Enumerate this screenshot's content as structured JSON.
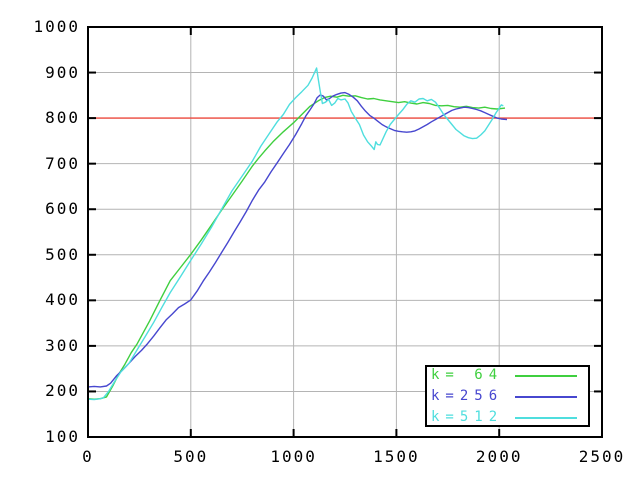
{
  "window": {
    "background": "#ffffff"
  },
  "chart_data": {
    "type": "line",
    "title": "",
    "xlabel": "",
    "ylabel": "",
    "xlim": [
      0,
      2500
    ],
    "ylim": [
      100,
      1000
    ],
    "grid": true,
    "grid_color": "#b4b4b4",
    "border_color": "#000000",
    "legend_position": "bottom-right",
    "xticks": [
      0,
      500,
      1000,
      1500,
      2000,
      2500
    ],
    "xtick_labels": [
      "0",
      "500",
      "1000",
      "1500",
      "2000",
      "2500"
    ],
    "yticks": [
      100,
      200,
      300,
      400,
      500,
      600,
      700,
      800,
      900,
      1000
    ],
    "ytick_labels": [
      "100",
      "200",
      "300",
      "400",
      "500",
      "600",
      "700",
      "800",
      "900",
      "1000"
    ],
    "reference_line": {
      "y": 800,
      "color": "#ef4a3f"
    },
    "series": [
      {
        "label": "k= 64",
        "color": "#3fcf3f",
        "points": [
          [
            0,
            184
          ],
          [
            30,
            183
          ],
          [
            60,
            184
          ],
          [
            90,
            188
          ],
          [
            120,
            212
          ],
          [
            150,
            238
          ],
          [
            180,
            260
          ],
          [
            210,
            285
          ],
          [
            240,
            305
          ],
          [
            270,
            330
          ],
          [
            300,
            355
          ],
          [
            350,
            400
          ],
          [
            400,
            443
          ],
          [
            450,
            472
          ],
          [
            500,
            501
          ],
          [
            550,
            532
          ],
          [
            600,
            565
          ],
          [
            650,
            598
          ],
          [
            700,
            630
          ],
          [
            750,
            662
          ],
          [
            800,
            695
          ],
          [
            830,
            712
          ],
          [
            860,
            728
          ],
          [
            900,
            748
          ],
          [
            950,
            770
          ],
          [
            1000,
            790
          ],
          [
            1040,
            808
          ],
          [
            1080,
            826
          ],
          [
            1120,
            838
          ],
          [
            1150,
            845
          ],
          [
            1180,
            848
          ],
          [
            1210,
            846
          ],
          [
            1240,
            850
          ],
          [
            1270,
            848
          ],
          [
            1300,
            849
          ],
          [
            1330,
            845
          ],
          [
            1360,
            842
          ],
          [
            1390,
            843
          ],
          [
            1420,
            840
          ],
          [
            1450,
            838
          ],
          [
            1480,
            836
          ],
          [
            1510,
            834
          ],
          [
            1540,
            836
          ],
          [
            1570,
            833
          ],
          [
            1600,
            831
          ],
          [
            1630,
            834
          ],
          [
            1660,
            832
          ],
          [
            1690,
            828
          ],
          [
            1720,
            827
          ],
          [
            1750,
            828
          ],
          [
            1780,
            825
          ],
          [
            1810,
            824
          ],
          [
            1840,
            826
          ],
          [
            1870,
            823
          ],
          [
            1900,
            822
          ],
          [
            1930,
            824
          ],
          [
            1960,
            821
          ],
          [
            1990,
            820
          ],
          [
            2028,
            822
          ]
        ]
      },
      {
        "label": "k=256",
        "color": "#4747cf",
        "points": [
          [
            0,
            210
          ],
          [
            30,
            211
          ],
          [
            60,
            210
          ],
          [
            90,
            212
          ],
          [
            110,
            218
          ],
          [
            140,
            235
          ],
          [
            170,
            248
          ],
          [
            200,
            262
          ],
          [
            230,
            277
          ],
          [
            260,
            290
          ],
          [
            290,
            305
          ],
          [
            320,
            322
          ],
          [
            350,
            340
          ],
          [
            380,
            357
          ],
          [
            410,
            370
          ],
          [
            440,
            384
          ],
          [
            470,
            392
          ],
          [
            500,
            401
          ],
          [
            530,
            420
          ],
          [
            560,
            442
          ],
          [
            590,
            462
          ],
          [
            620,
            483
          ],
          [
            650,
            505
          ],
          [
            680,
            527
          ],
          [
            710,
            550
          ],
          [
            740,
            572
          ],
          [
            770,
            595
          ],
          [
            800,
            620
          ],
          [
            830,
            642
          ],
          [
            860,
            660
          ],
          [
            890,
            682
          ],
          [
            920,
            702
          ],
          [
            950,
            722
          ],
          [
            980,
            742
          ],
          [
            1010,
            764
          ],
          [
            1040,
            788
          ],
          [
            1060,
            805
          ],
          [
            1080,
            818
          ],
          [
            1100,
            832
          ],
          [
            1115,
            845
          ],
          [
            1130,
            851
          ],
          [
            1145,
            848
          ],
          [
            1160,
            840
          ],
          [
            1175,
            843
          ],
          [
            1190,
            848
          ],
          [
            1210,
            852
          ],
          [
            1230,
            855
          ],
          [
            1250,
            856
          ],
          [
            1270,
            852
          ],
          [
            1290,
            846
          ],
          [
            1310,
            838
          ],
          [
            1330,
            826
          ],
          [
            1350,
            815
          ],
          [
            1370,
            806
          ],
          [
            1390,
            800
          ],
          [
            1410,
            793
          ],
          [
            1430,
            786
          ],
          [
            1450,
            781
          ],
          [
            1470,
            777
          ],
          [
            1490,
            773
          ],
          [
            1510,
            771
          ],
          [
            1530,
            770
          ],
          [
            1550,
            769
          ],
          [
            1570,
            770
          ],
          [
            1590,
            772
          ],
          [
            1610,
            776
          ],
          [
            1630,
            781
          ],
          [
            1650,
            786
          ],
          [
            1670,
            792
          ],
          [
            1690,
            797
          ],
          [
            1710,
            802
          ],
          [
            1730,
            807
          ],
          [
            1750,
            812
          ],
          [
            1770,
            817
          ],
          [
            1790,
            820
          ],
          [
            1810,
            822
          ],
          [
            1830,
            824
          ],
          [
            1850,
            823
          ],
          [
            1870,
            821
          ],
          [
            1890,
            819
          ],
          [
            1910,
            816
          ],
          [
            1930,
            812
          ],
          [
            1950,
            808
          ],
          [
            1970,
            804
          ],
          [
            1990,
            800
          ],
          [
            2010,
            798
          ],
          [
            2038,
            797
          ]
        ]
      },
      {
        "label": "k=512",
        "color": "#4fdede",
        "points": [
          [
            0,
            183
          ],
          [
            30,
            182
          ],
          [
            60,
            184
          ],
          [
            75,
            186
          ],
          [
            100,
            200
          ],
          [
            130,
            222
          ],
          [
            160,
            243
          ],
          [
            200,
            262
          ],
          [
            240,
            292
          ],
          [
            280,
            322
          ],
          [
            320,
            352
          ],
          [
            360,
            385
          ],
          [
            400,
            417
          ],
          [
            450,
            452
          ],
          [
            500,
            488
          ],
          [
            550,
            523
          ],
          [
            600,
            560
          ],
          [
            650,
            600
          ],
          [
            700,
            640
          ],
          [
            750,
            673
          ],
          [
            800,
            706
          ],
          [
            840,
            738
          ],
          [
            880,
            765
          ],
          [
            920,
            792
          ],
          [
            950,
            808
          ],
          [
            980,
            830
          ],
          [
            1010,
            845
          ],
          [
            1040,
            858
          ],
          [
            1070,
            872
          ],
          [
            1090,
            888
          ],
          [
            1105,
            903
          ],
          [
            1112,
            910
          ],
          [
            1120,
            885
          ],
          [
            1130,
            858
          ],
          [
            1140,
            832
          ],
          [
            1155,
            835
          ],
          [
            1170,
            841
          ],
          [
            1185,
            828
          ],
          [
            1200,
            833
          ],
          [
            1215,
            843
          ],
          [
            1230,
            840
          ],
          [
            1250,
            842
          ],
          [
            1265,
            833
          ],
          [
            1280,
            815
          ],
          [
            1300,
            800
          ],
          [
            1320,
            786
          ],
          [
            1340,
            763
          ],
          [
            1360,
            748
          ],
          [
            1380,
            738
          ],
          [
            1392,
            731
          ],
          [
            1400,
            748
          ],
          [
            1408,
            742
          ],
          [
            1420,
            741
          ],
          [
            1435,
            755
          ],
          [
            1450,
            770
          ],
          [
            1470,
            786
          ],
          [
            1490,
            797
          ],
          [
            1510,
            808
          ],
          [
            1530,
            818
          ],
          [
            1550,
            830
          ],
          [
            1570,
            838
          ],
          [
            1590,
            835
          ],
          [
            1610,
            842
          ],
          [
            1630,
            843
          ],
          [
            1650,
            838
          ],
          [
            1670,
            841
          ],
          [
            1690,
            835
          ],
          [
            1710,
            822
          ],
          [
            1730,
            808
          ],
          [
            1750,
            797
          ],
          [
            1770,
            786
          ],
          [
            1790,
            775
          ],
          [
            1810,
            768
          ],
          [
            1830,
            761
          ],
          [
            1850,
            757
          ],
          [
            1870,
            755
          ],
          [
            1890,
            756
          ],
          [
            1910,
            763
          ],
          [
            1930,
            772
          ],
          [
            1950,
            786
          ],
          [
            1970,
            800
          ],
          [
            1985,
            812
          ],
          [
            2000,
            822
          ],
          [
            2010,
            829
          ],
          [
            2020,
            827
          ]
        ]
      }
    ]
  }
}
